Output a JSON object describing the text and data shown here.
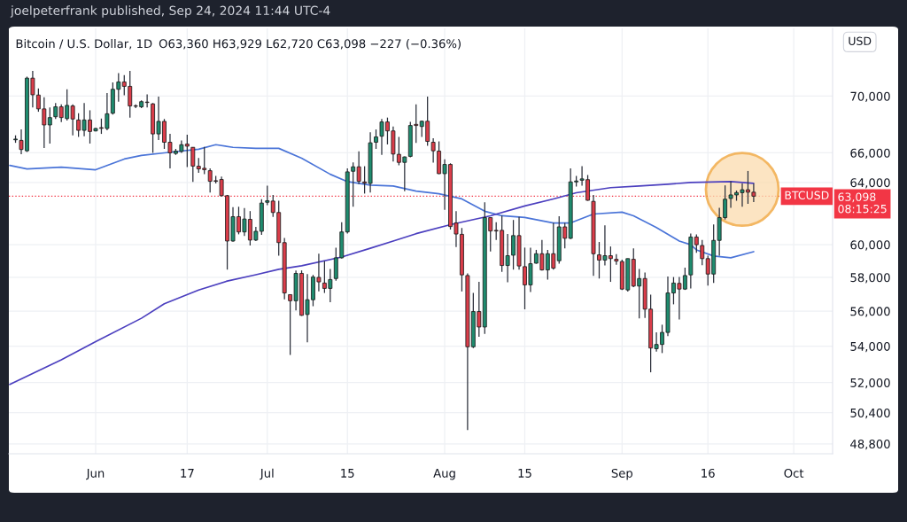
{
  "chart_data": {
    "type": "candlestick",
    "title": "Bitcoin / U.S. Dollar, 1D",
    "subtitle": "O63,360 H63,929 L62,720 C63,098 −227 (−0.36%)",
    "ylabel": "USD",
    "annotations": [
      "joelpeterfrank published, Sep 24, 2024 11:44 UTC-4",
      "63,098",
      "08:15:25"
    ],
    "x": [
      "2024-05-18",
      "2024-05-19",
      "2024-05-20",
      "2024-05-21",
      "2024-05-22",
      "2024-05-23",
      "2024-05-24",
      "2024-05-25",
      "2024-05-26",
      "2024-05-27",
      "2024-05-28",
      "2024-05-29",
      "2024-05-30",
      "2024-05-31",
      "2024-06-01",
      "2024-06-02",
      "2024-06-03",
      "2024-06-04",
      "2024-06-05",
      "2024-06-06",
      "2024-06-07",
      "2024-06-08",
      "2024-06-09",
      "2024-06-10",
      "2024-06-11",
      "2024-06-12",
      "2024-06-13",
      "2024-06-14",
      "2024-06-15",
      "2024-06-16",
      "2024-06-17",
      "2024-06-18",
      "2024-06-19",
      "2024-06-20",
      "2024-06-21",
      "2024-06-22",
      "2024-06-23",
      "2024-06-24",
      "2024-06-25",
      "2024-06-26",
      "2024-06-27",
      "2024-06-28",
      "2024-06-29",
      "2024-06-30",
      "2024-07-01",
      "2024-07-02",
      "2024-07-03",
      "2024-07-04",
      "2024-07-05",
      "2024-07-06",
      "2024-07-07",
      "2024-07-08",
      "2024-07-09",
      "2024-07-10",
      "2024-07-11",
      "2024-07-12",
      "2024-07-13",
      "2024-07-14",
      "2024-07-15",
      "2024-07-16",
      "2024-07-17",
      "2024-07-18",
      "2024-07-19",
      "2024-07-20",
      "2024-07-21",
      "2024-07-22",
      "2024-07-23",
      "2024-07-24",
      "2024-07-25",
      "2024-07-26",
      "2024-07-27",
      "2024-07-28",
      "2024-07-29",
      "2024-07-30",
      "2024-07-31",
      "2024-08-01",
      "2024-08-02",
      "2024-08-03",
      "2024-08-04",
      "2024-08-05",
      "2024-08-06",
      "2024-08-07",
      "2024-08-08",
      "2024-08-09",
      "2024-08-10",
      "2024-08-11",
      "2024-08-12",
      "2024-08-13",
      "2024-08-14",
      "2024-08-15",
      "2024-08-16",
      "2024-08-17",
      "2024-08-18",
      "2024-08-19",
      "2024-08-20",
      "2024-08-21",
      "2024-08-22",
      "2024-08-23",
      "2024-08-24",
      "2024-08-25",
      "2024-08-26",
      "2024-08-27",
      "2024-08-28",
      "2024-08-29",
      "2024-08-30",
      "2024-08-31",
      "2024-09-01",
      "2024-09-02",
      "2024-09-03",
      "2024-09-04",
      "2024-09-05",
      "2024-09-06",
      "2024-09-07",
      "2024-09-08",
      "2024-09-09",
      "2024-09-10",
      "2024-09-11",
      "2024-09-12",
      "2024-09-13",
      "2024-09-14",
      "2024-09-15",
      "2024-09-16",
      "2024-09-17",
      "2024-09-18",
      "2024-09-19",
      "2024-09-20",
      "2024-09-21",
      "2024-09-22",
      "2024-09-23",
      "2024-09-24"
    ],
    "ohlc": [
      [
        66900,
        67210,
        66690,
        66950
      ],
      [
        66860,
        67625,
        65900,
        66230
      ],
      [
        66140,
        71430,
        66060,
        71320
      ],
      [
        71320,
        71860,
        69190,
        70100
      ],
      [
        70080,
        70560,
        68875,
        69080
      ],
      [
        69080,
        69920,
        66330,
        67940
      ],
      [
        67940,
        69190,
        66640,
        68460
      ],
      [
        68520,
        69500,
        68360,
        69230
      ],
      [
        69230,
        69400,
        68140,
        68460
      ],
      [
        68390,
        70500,
        68250,
        69330
      ],
      [
        69290,
        69400,
        67210,
        68360
      ],
      [
        68290,
        68770,
        67100,
        67560
      ],
      [
        67560,
        69500,
        67150,
        68290
      ],
      [
        68290,
        68980,
        66640,
        67480
      ],
      [
        67520,
        67730,
        67480,
        67690
      ],
      [
        67750,
        68390,
        67310,
        67700
      ],
      [
        67690,
        70230,
        67560,
        68730
      ],
      [
        68770,
        71000,
        68670,
        70500
      ],
      [
        70500,
        71690,
        69600,
        71040
      ],
      [
        71040,
        71540,
        70060,
        70715
      ],
      [
        70715,
        71860,
        68460,
        69290
      ],
      [
        69300,
        69400,
        69140,
        69270
      ],
      [
        69230,
        69700,
        69140,
        69600
      ],
      [
        69570,
        70120,
        69190,
        69540
      ],
      [
        69440,
        69500,
        66000,
        67310
      ],
      [
        67310,
        69960,
        66890,
        68190
      ],
      [
        68190,
        68360,
        66270,
        66730
      ],
      [
        66730,
        67310,
        64950,
        66000
      ],
      [
        65960,
        66270,
        65860,
        66120
      ],
      [
        66100,
        66850,
        66000,
        66560
      ],
      [
        66600,
        67250,
        65040,
        66460
      ],
      [
        66380,
        66400,
        64040,
        65100
      ],
      [
        65090,
        65650,
        64650,
        64910
      ],
      [
        64950,
        66410,
        64560,
        64860
      ],
      [
        64790,
        64950,
        63330,
        64080
      ],
      [
        64120,
        64440,
        63940,
        64080
      ],
      [
        64200,
        64400,
        63090,
        63130
      ],
      [
        63130,
        63180,
        58470,
        60230
      ],
      [
        60230,
        62380,
        60180,
        61770
      ],
      [
        61770,
        62410,
        60650,
        60800
      ],
      [
        60800,
        62320,
        60550,
        61620
      ],
      [
        61600,
        62130,
        59950,
        60290
      ],
      [
        60290,
        61120,
        60230,
        60840
      ],
      [
        60840,
        62900,
        60610,
        62650
      ],
      [
        62700,
        63790,
        62510,
        62800
      ],
      [
        62780,
        63180,
        61750,
        62040
      ],
      [
        62040,
        62800,
        59320,
        60130
      ],
      [
        60130,
        60420,
        56700,
        57070
      ],
      [
        56970,
        56970,
        53510,
        56610
      ],
      [
        56610,
        58420,
        56040,
        58240
      ],
      [
        58240,
        58420,
        55730,
        55760
      ],
      [
        55810,
        58200,
        54220,
        56670
      ],
      [
        56670,
        58150,
        56290,
        58020
      ],
      [
        58000,
        59440,
        57160,
        57730
      ],
      [
        57660,
        58990,
        57070,
        57340
      ],
      [
        57340,
        58510,
        56530,
        57870
      ],
      [
        57930,
        59820,
        57800,
        59190
      ],
      [
        59190,
        61420,
        59150,
        60800
      ],
      [
        60800,
        64950,
        60700,
        64710
      ],
      [
        64750,
        65350,
        62410,
        65050
      ],
      [
        65050,
        66100,
        63890,
        64080
      ],
      [
        64040,
        65090,
        63270,
        63960
      ],
      [
        63940,
        67420,
        63330,
        66690
      ],
      [
        66730,
        67620,
        66270,
        67100
      ],
      [
        67150,
        68360,
        65860,
        68150
      ],
      [
        68150,
        68460,
        66580,
        67520
      ],
      [
        67520,
        67830,
        65410,
        65920
      ],
      [
        65900,
        67100,
        65150,
        65350
      ],
      [
        65350,
        65760,
        63430,
        65720
      ],
      [
        65760,
        68150,
        65700,
        67900
      ],
      [
        67980,
        69400,
        66690,
        67900
      ],
      [
        67830,
        68250,
        67100,
        68200
      ],
      [
        68200,
        69960,
        66480,
        66790
      ],
      [
        66730,
        67000,
        65330,
        66140
      ],
      [
        66120,
        66790,
        64560,
        64590
      ],
      [
        64590,
        65560,
        62210,
        65210
      ],
      [
        65210,
        65290,
        60950,
        61140
      ],
      [
        61370,
        62130,
        59850,
        60670
      ],
      [
        60650,
        61050,
        57160,
        58150
      ],
      [
        58110,
        58240,
        49500,
        53970
      ],
      [
        53970,
        57070,
        53900,
        55980
      ],
      [
        55980,
        57730,
        54530,
        55090
      ],
      [
        55090,
        62700,
        54700,
        61710
      ],
      [
        61710,
        61720,
        59580,
        60860
      ],
      [
        60900,
        61420,
        60290,
        60860
      ],
      [
        60900,
        61840,
        58330,
        58720
      ],
      [
        58720,
        60670,
        57700,
        59320
      ],
      [
        59350,
        61560,
        58470,
        60570
      ],
      [
        60570,
        61750,
        58470,
        58690
      ],
      [
        58650,
        59820,
        56110,
        57550
      ],
      [
        57550,
        59820,
        57120,
        58830
      ],
      [
        58860,
        59680,
        58830,
        59440
      ],
      [
        59440,
        60290,
        58420,
        58450
      ],
      [
        58450,
        59680,
        57870,
        59440
      ],
      [
        59440,
        61370,
        58470,
        58560
      ],
      [
        59010,
        61800,
        58830,
        61120
      ],
      [
        61120,
        61370,
        59770,
        60400
      ],
      [
        60400,
        64950,
        60350,
        64040
      ],
      [
        64040,
        64440,
        63730,
        64100
      ],
      [
        64150,
        65090,
        63790,
        64240
      ],
      [
        64190,
        64500,
        62800,
        62830
      ],
      [
        62760,
        63180,
        58090,
        59440
      ],
      [
        59370,
        60170,
        57930,
        59050
      ],
      [
        59050,
        61220,
        58720,
        59320
      ],
      [
        59320,
        59890,
        57730,
        59140
      ],
      [
        59100,
        59410,
        58770,
        58990
      ],
      [
        58960,
        59080,
        57250,
        57300
      ],
      [
        57250,
        59150,
        57150,
        59140
      ],
      [
        59100,
        59770,
        57420,
        57480
      ],
      [
        57480,
        58510,
        55590,
        57930
      ],
      [
        57930,
        58290,
        55610,
        56120
      ],
      [
        56120,
        56970,
        52560,
        53900
      ],
      [
        53860,
        54780,
        53700,
        54100
      ],
      [
        54100,
        55220,
        53620,
        54780
      ],
      [
        54780,
        58050,
        54570,
        57070
      ],
      [
        57070,
        58020,
        56400,
        57660
      ],
      [
        57640,
        58020,
        55520,
        57300
      ],
      [
        57300,
        58590,
        57250,
        58110
      ],
      [
        58150,
        60700,
        57340,
        60480
      ],
      [
        60480,
        60650,
        59500,
        60000
      ],
      [
        59950,
        60290,
        58740,
        59140
      ],
      [
        59140,
        59320,
        57510,
        58200
      ],
      [
        58200,
        61270,
        57660,
        60270
      ],
      [
        60270,
        62340,
        59320,
        61710
      ],
      [
        61710,
        63810,
        61590,
        62900
      ],
      [
        62950,
        64080,
        62340,
        63180
      ],
      [
        63180,
        63470,
        62800,
        63330
      ],
      [
        63330,
        63940,
        62410,
        63520
      ],
      [
        63520,
        64770,
        62600,
        63360
      ],
      [
        63360,
        63929,
        62720,
        63098
      ]
    ],
    "colors": [
      "#1f8c6f",
      "#db3d4a",
      "#1f8c6f",
      "#db3d4a",
      "#db3d4a",
      "#db3d4a",
      "#1f8c6f",
      "#1f8c6f",
      "#db3d4a",
      "#1f8c6f",
      "#db3d4a",
      "#db3d4a",
      "#1f8c6f",
      "#db3d4a",
      "#1f8c6f",
      "#db3d4a",
      "#1f8c6f",
      "#1f8c6f",
      "#1f8c6f",
      "#db3d4a",
      "#db3d4a",
      "#db3d4a",
      "#1f8c6f",
      "#db3d4a",
      "#db3d4a",
      "#1f8c6f",
      "#db3d4a",
      "#db3d4a",
      "#1f8c6f",
      "#1f8c6f",
      "#db3d4a",
      "#db3d4a",
      "#db3d4a",
      "#db3d4a",
      "#db3d4a",
      "#db3d4a",
      "#db3d4a",
      "#db3d4a",
      "#1f8c6f",
      "#db3d4a",
      "#1f8c6f",
      "#db3d4a",
      "#1f8c6f",
      "#1f8c6f",
      "#1f8c6f",
      "#db3d4a",
      "#db3d4a",
      "#db3d4a",
      "#db3d4a",
      "#1f8c6f",
      "#db3d4a",
      "#1f8c6f",
      "#1f8c6f",
      "#db3d4a",
      "#db3d4a",
      "#1f8c6f",
      "#1f8c6f",
      "#1f8c6f",
      "#1f8c6f",
      "#1f8c6f",
      "#db3d4a",
      "#db3d4a",
      "#1f8c6f",
      "#1f8c6f",
      "#1f8c6f",
      "#db3d4a",
      "#db3d4a",
      "#db3d4a",
      "#1f8c6f",
      "#1f8c6f",
      "#db3d4a",
      "#1f8c6f",
      "#db3d4a",
      "#db3d4a",
      "#db3d4a",
      "#1f8c6f",
      "#db3d4a",
      "#db3d4a",
      "#db3d4a",
      "#db3d4a",
      "#1f8c6f",
      "#db3d4a",
      "#1f8c6f",
      "#db3d4a",
      "#db3d4a",
      "#db3d4a",
      "#1f8c6f",
      "#1f8c6f",
      "#db3d4a",
      "#db3d4a",
      "#1f8c6f",
      "#1f8c6f",
      "#db3d4a",
      "#1f8c6f",
      "#db3d4a",
      "#1f8c6f",
      "#db3d4a",
      "#1f8c6f",
      "#1f8c6f",
      "#1f8c6f",
      "#db3d4a",
      "#db3d4a",
      "#db3d4a",
      "#1f8c6f",
      "#db3d4a",
      "#db3d4a",
      "#db3d4a",
      "#1f8c6f",
      "#db3d4a",
      "#1f8c6f",
      "#db3d4a",
      "#db3d4a",
      "#1f8c6f",
      "#1f8c6f",
      "#1f8c6f",
      "#1f8c6f",
      "#db3d4a",
      "#1f8c6f",
      "#1f8c6f",
      "#db3d4a",
      "#db3d4a",
      "#db3d4a",
      "#1f8c6f",
      "#1f8c6f",
      "#1f8c6f",
      "#1f8c6f",
      "#1f8c6f",
      "#1f8c6f",
      "#db3d4a",
      "#db3d4a"
    ],
    "series": [
      {
        "type": "line",
        "color": "#4a74d8",
        "x": [
          "2024-05-17",
          "2024-05-20",
          "2024-05-26",
          "2024-06-01",
          "2024-06-06",
          "2024-06-09",
          "2024-06-13",
          "2024-06-19",
          "2024-06-22",
          "2024-06-25",
          "2024-06-29",
          "2024-07-03",
          "2024-07-07",
          "2024-07-12",
          "2024-07-15",
          "2024-07-19",
          "2024-07-23",
          "2024-07-27",
          "2024-07-31",
          "2024-08-04",
          "2024-08-08",
          "2024-08-11",
          "2024-08-15",
          "2024-08-20",
          "2024-08-23",
          "2024-08-27",
          "2024-09-01",
          "2024-09-03",
          "2024-09-07",
          "2024-09-11",
          "2024-09-13",
          "2024-09-14",
          "2024-09-17",
          "2024-09-20",
          "2024-09-24"
        ],
        "values": [
          65150,
          64910,
          65030,
          64850,
          65580,
          65820,
          66000,
          66250,
          66560,
          66380,
          66310,
          66310,
          65640,
          64550,
          64060,
          63830,
          63770,
          63430,
          63260,
          62920,
          62120,
          61830,
          61720,
          61370,
          61370,
          61940,
          62060,
          61830,
          61080,
          60230,
          60000,
          59680,
          59300,
          59190,
          59570
        ]
      },
      {
        "type": "line",
        "color": "#4b3fbf",
        "x": [
          "2024-05-17",
          "2024-05-26",
          "2024-06-01",
          "2024-06-09",
          "2024-06-13",
          "2024-06-19",
          "2024-06-24",
          "2024-06-29",
          "2024-07-03",
          "2024-07-07",
          "2024-07-14",
          "2024-07-19",
          "2024-07-23",
          "2024-07-27",
          "2024-08-02",
          "2024-08-09",
          "2024-08-15",
          "2024-08-20",
          "2024-08-24",
          "2024-08-30",
          "2024-09-04",
          "2024-09-09",
          "2024-09-13",
          "2024-09-20",
          "2024-09-24"
        ],
        "values": [
          51900,
          53240,
          54260,
          55590,
          56430,
          57240,
          57780,
          58160,
          58490,
          58700,
          59240,
          59780,
          60230,
          60690,
          61260,
          61830,
          62460,
          62920,
          63320,
          63660,
          63770,
          63890,
          64000,
          64060,
          63940
        ]
      }
    ],
    "ref_lines": [
      {
        "axis": "y",
        "value": 63098,
        "label": "BTCUSD",
        "color": "#f23645",
        "line_style": "dotted"
      }
    ],
    "xlim": [
      "2024-05-16T20:00",
      "2024-10-07T19:00"
    ],
    "xticks": [
      {
        "value": "2024-06-01",
        "label": "Jun"
      },
      {
        "value": "2024-06-17",
        "label": "17"
      },
      {
        "value": "2024-07-01",
        "label": "Jul"
      },
      {
        "value": "2024-07-15",
        "label": "15"
      },
      {
        "value": "2024-08-01",
        "label": "Aug"
      },
      {
        "value": "2024-08-15",
        "label": "15"
      },
      {
        "value": "2024-09-01",
        "label": "Sep"
      },
      {
        "value": "2024-09-16",
        "label": "16"
      },
      {
        "value": "2024-10-01",
        "label": "Oct"
      }
    ],
    "ylim": [
      48300,
      75100
    ],
    "yticks": [
      {
        "value": 48800,
        "label": "48,800"
      },
      {
        "value": 50400,
        "label": "50,400"
      },
      {
        "value": 52000,
        "label": "52,000"
      },
      {
        "value": 54000,
        "label": "54,000"
      },
      {
        "value": 56000,
        "label": "56,000"
      },
      {
        "value": 58000,
        "label": "58,000"
      },
      {
        "value": 60000,
        "label": "60,000"
      },
      {
        "value": 64000,
        "label": "64,000"
      },
      {
        "value": 66000,
        "label": "66,000"
      },
      {
        "value": 70000,
        "label": "70,000"
      }
    ],
    "log": true,
    "grid": true
  }
}
